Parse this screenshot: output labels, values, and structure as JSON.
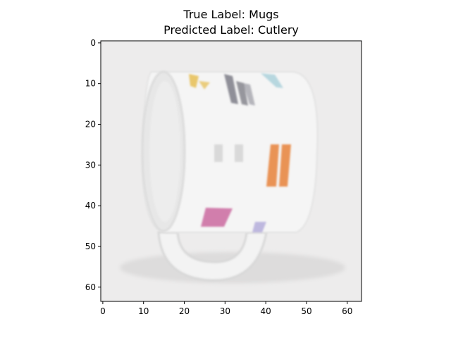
{
  "figure": {
    "title_line1": "True Label: Mugs",
    "title_line2": "Predicted Label: Cutlery"
  },
  "axes": {
    "x_ticks": [
      0,
      10,
      20,
      30,
      40,
      50,
      60
    ],
    "y_ticks": [
      0,
      10,
      20,
      30,
      40,
      50,
      60
    ],
    "xlim": [
      -0.5,
      63.5
    ],
    "ylim": [
      63.5,
      -0.5
    ]
  },
  "image": {
    "description_colors": {
      "background": "#ebeaea",
      "mug_body": "#f4f4f4",
      "shadow": "#dadada",
      "accent_orange": "#e8813a",
      "accent_gray": "#6e6e78",
      "accent_yellow": "#e6bb4a",
      "accent_teal": "#9ccbd6",
      "accent_pink": "#c8609a",
      "accent_purple": "#9a8fd0"
    }
  }
}
